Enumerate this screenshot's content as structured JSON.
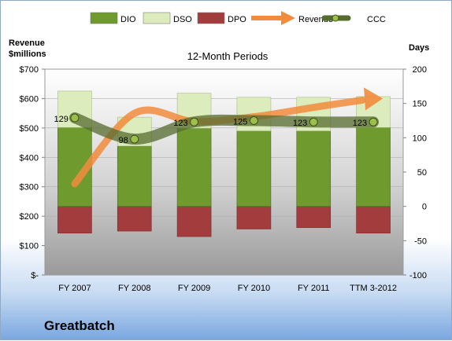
{
  "chart_data": {
    "type": "bar",
    "title": "12-Month Periods",
    "categories": [
      "FY 2007",
      "FY 2008",
      "FY 2009",
      "FY 2010",
      "FY 2011",
      "TTM 3-2012"
    ],
    "left_axis": {
      "label_line1": "Revenue",
      "label_line2": "$millions",
      "ticks": [
        "$-",
        "$100",
        "$200",
        "$300",
        "$400",
        "$500",
        "$600",
        "$700"
      ],
      "ylim": [
        0,
        700
      ]
    },
    "right_axis": {
      "label": "Days",
      "ticks": [
        "-100",
        "-50",
        "0",
        "50",
        "100",
        "150",
        "200"
      ],
      "ylim": [
        -100,
        200
      ]
    },
    "series": [
      {
        "name": "DIO",
        "axis": "right",
        "kind": "bar",
        "color": "#6f9a2e",
        "values": [
          115,
          88,
          114,
          110,
          110,
          115
        ]
      },
      {
        "name": "DSO",
        "axis": "right",
        "kind": "bar",
        "color": "#dcecbc",
        "values": [
          53,
          42,
          51,
          49,
          49,
          45
        ]
      },
      {
        "name": "DPO",
        "axis": "right",
        "kind": "bar",
        "color": "#a33c3c",
        "values": [
          39,
          36,
          44,
          33,
          31,
          39
        ]
      },
      {
        "name": "Revenue",
        "axis": "left",
        "kind": "line",
        "color": "#f28b3c",
        "values": [
          310,
          550,
          522,
          538,
          570,
          600
        ]
      },
      {
        "name": "CCC",
        "axis": "right",
        "kind": "line",
        "color": "#556b2f",
        "values": [
          129,
          98,
          123,
          125,
          123,
          123
        ]
      }
    ],
    "data_labels": [
      "129",
      "98",
      "123",
      "125",
      "123",
      "123"
    ],
    "legend_position": "top"
  },
  "footer": {
    "company": "Greatbatch"
  }
}
